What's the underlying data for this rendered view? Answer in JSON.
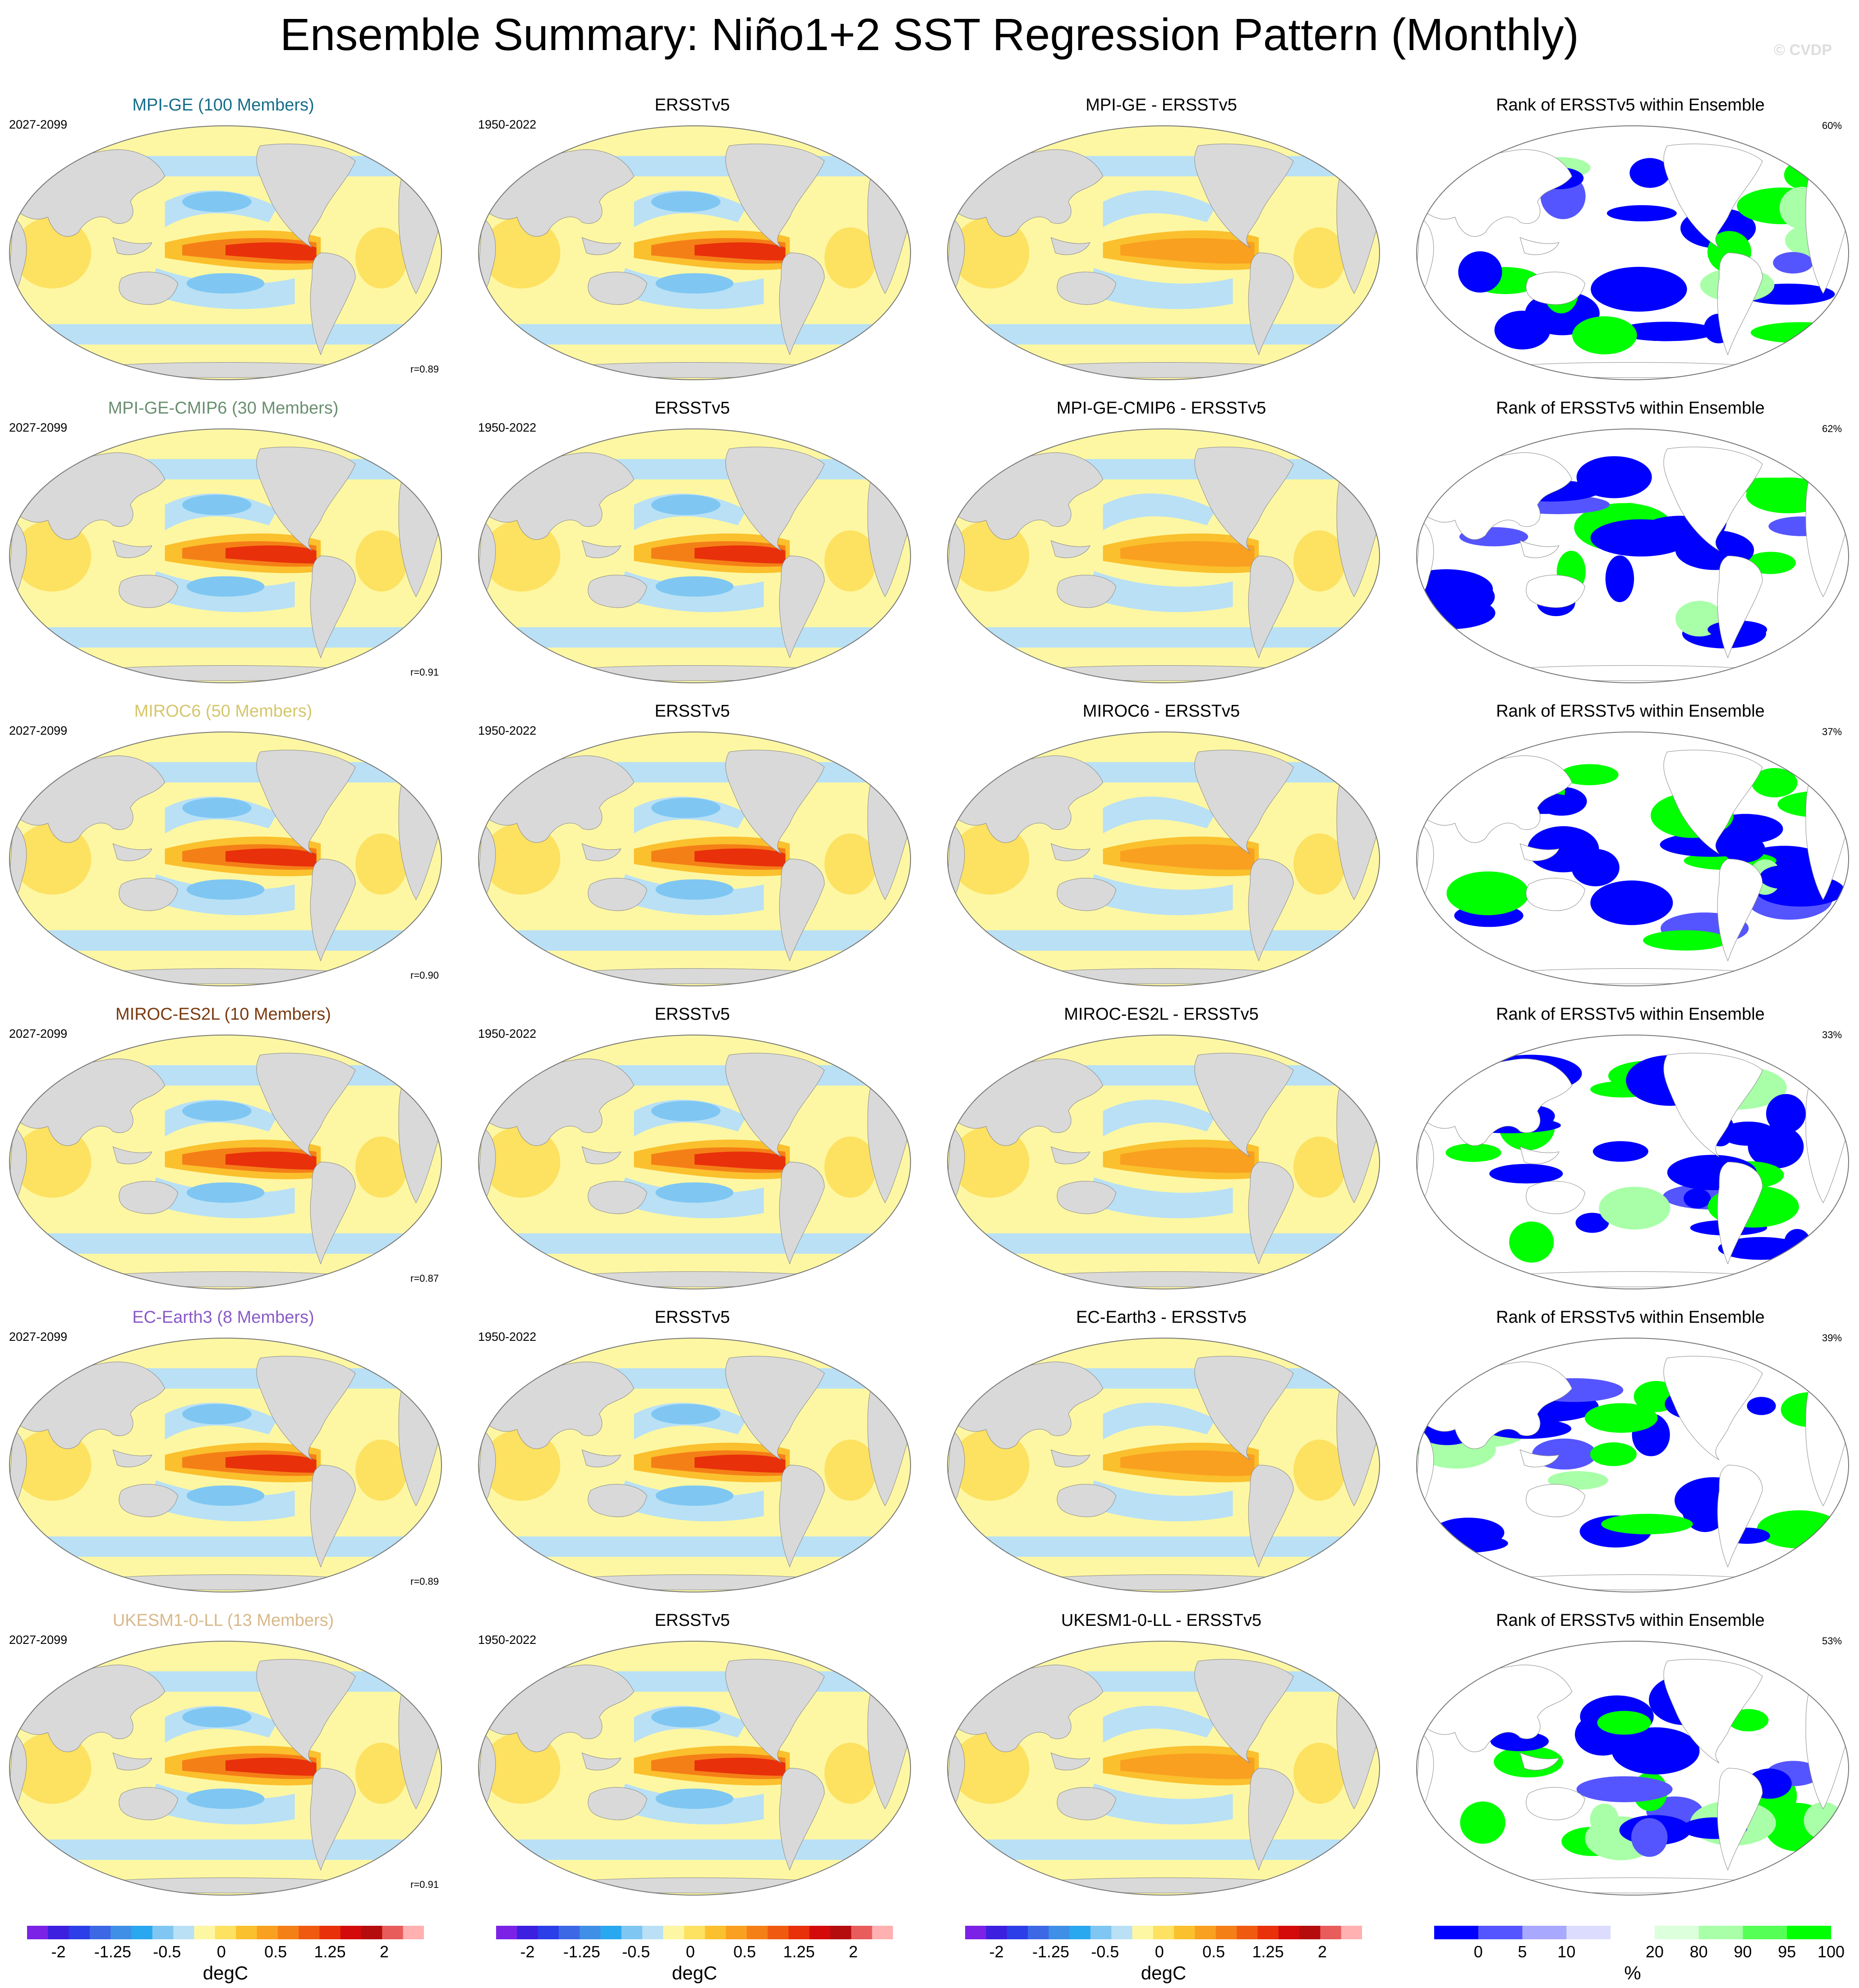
{
  "title": "Ensemble Summary: Niño1+2 SST Regression Pattern (Monthly)",
  "watermark": "© CVDP",
  "colors": {
    "land": "#d9d9d9",
    "regression_scale": [
      "#7b22e6",
      "#3d1fe0",
      "#2b3ee8",
      "#3c68e6",
      "#3f8fe6",
      "#2aa8ef",
      "#7fc7f2",
      "#b9e0f5",
      "#fdf7a3",
      "#fde161",
      "#fbc02d",
      "#f9a020",
      "#f57f17",
      "#ef5a10",
      "#e8300a",
      "#d40a0a",
      "#b50d0d",
      "#e85c5c",
      "#ffb0b0"
    ],
    "rank_scale": [
      "#0000ff",
      "#5555ff",
      "#a8a8ff",
      "#dcdcff",
      "#ffffff",
      "#dcffdc",
      "#a8ffa8",
      "#55ff55",
      "#00ff00"
    ]
  },
  "rows": [
    {
      "model": "MPI-GE (100 Members)",
      "model_color": "#156d8a",
      "model_period": "2027-2099",
      "obs": "ERSSTv5",
      "obs_period": "1950-2022",
      "diff": "MPI-GE - ERSSTv5",
      "rank_title": "Rank of ERSSTv5 within Ensemble",
      "rank_pct": "60%",
      "r": "r=0.89"
    },
    {
      "model": "MPI-GE-CMIP6 (30 Members)",
      "model_color": "#6a8f70",
      "model_period": "2027-2099",
      "obs": "ERSSTv5",
      "obs_period": "1950-2022",
      "diff": "MPI-GE-CMIP6 - ERSSTv5",
      "rank_title": "Rank of ERSSTv5 within Ensemble",
      "rank_pct": "62%",
      "r": "r=0.91"
    },
    {
      "model": "MIROC6 (50 Members)",
      "model_color": "#d6c66a",
      "model_period": "2027-2099",
      "obs": "ERSSTv5",
      "obs_period": "1950-2022",
      "diff": "MIROC6 - ERSSTv5",
      "rank_title": "Rank of ERSSTv5 within Ensemble",
      "rank_pct": "37%",
      "r": "r=0.90"
    },
    {
      "model": "MIROC-ES2L (10 Members)",
      "model_color": "#7a3a10",
      "model_period": "2027-2099",
      "obs": "ERSSTv5",
      "obs_period": "1950-2022",
      "diff": "MIROC-ES2L - ERSSTv5",
      "rank_title": "Rank of ERSSTv5 within Ensemble",
      "rank_pct": "33%",
      "r": "r=0.87"
    },
    {
      "model": "EC-Earth3 (8 Members)",
      "model_color": "#8a5ac8",
      "model_period": "2027-2099",
      "obs": "ERSSTv5",
      "obs_period": "1950-2022",
      "diff": "EC-Earth3 - ERSSTv5",
      "rank_title": "Rank of ERSSTv5 within Ensemble",
      "rank_pct": "39%",
      "r": "r=0.89"
    },
    {
      "model": "UKESM1-0-LL (13 Members)",
      "model_color": "#d8b88a",
      "model_period": "2027-2099",
      "obs": "ERSSTv5",
      "obs_period": "1950-2022",
      "diff": "UKESM1-0-LL - ERSSTv5",
      "rank_title": "Rank of ERSSTv5 within Ensemble",
      "rank_pct": "53%",
      "r": "r=0.91"
    }
  ],
  "colorbars": [
    {
      "unit": "degC",
      "labels": [
        "-2",
        "-1.25",
        "-0.5",
        "0",
        "0.5",
        "1.25",
        "2"
      ]
    },
    {
      "unit": "degC",
      "labels": [
        "-2",
        "-1.25",
        "-0.5",
        "0",
        "0.5",
        "1.25",
        "2"
      ]
    },
    {
      "unit": "degC",
      "labels": [
        "-2",
        "-1.25",
        "-0.5",
        "0",
        "0.5",
        "1.25",
        "2"
      ]
    },
    {
      "unit": "%",
      "labels": [
        "0",
        "5",
        "10",
        "20",
        "80",
        "90",
        "95",
        "100"
      ]
    }
  ]
}
